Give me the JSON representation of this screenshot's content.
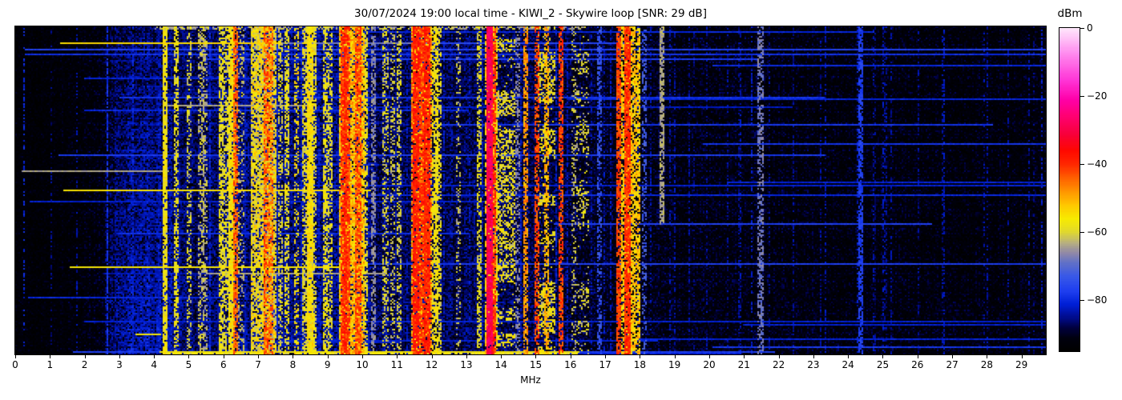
{
  "title": "30/07/2024 19:00 local time - KIWI_2 - Skywire loop [SNR: 29 dB]",
  "chart_data": {
    "type": "heatmap",
    "title": "30/07/2024 19:00 local time - KIWI_2 - Skywire loop [SNR: 29 dB]",
    "xlabel": "MHz",
    "x_ticks": [
      "0",
      "1",
      "2",
      "3",
      "4",
      "5",
      "6",
      "7",
      "8",
      "9",
      "10",
      "11",
      "12",
      "13",
      "14",
      "15",
      "16",
      "17",
      "18",
      "19",
      "20",
      "21",
      "22",
      "23",
      "24",
      "25",
      "26",
      "27",
      "28",
      "29"
    ],
    "xlim": [
      0,
      29.7
    ],
    "y_axis": "time (no tick labels shown)",
    "grid": false,
    "colorbar": {
      "label": "dBm",
      "range": [
        -95,
        0
      ],
      "ticks": [
        {
          "v": 0,
          "label": "0"
        },
        {
          "v": -20,
          "label": "−20"
        },
        {
          "v": -40,
          "label": "−40"
        },
        {
          "v": -60,
          "label": "−60"
        },
        {
          "v": -80,
          "label": "−80"
        }
      ]
    },
    "colormap": [
      [
        -95,
        "#000000"
      ],
      [
        -91,
        "#00000f"
      ],
      [
        -88,
        "#000040"
      ],
      [
        -85,
        "#000c8c"
      ],
      [
        -81,
        "#0020d8"
      ],
      [
        -77,
        "#2040f0"
      ],
      [
        -73,
        "#3858e8"
      ],
      [
        -69,
        "#6070c8"
      ],
      [
        -66,
        "#9088a8"
      ],
      [
        -63,
        "#b8b080"
      ],
      [
        -60,
        "#e0d830"
      ],
      [
        -56,
        "#f8ec00"
      ],
      [
        -52,
        "#ffc800"
      ],
      [
        -48,
        "#ff9600"
      ],
      [
        -44,
        "#ff6000"
      ],
      [
        -40,
        "#ff2800"
      ],
      [
        -36,
        "#ff0800"
      ],
      [
        -31,
        "#f8003c"
      ],
      [
        -26,
        "#ff0070"
      ],
      [
        -21,
        "#ff00a8"
      ],
      [
        -15,
        "#ff38d8"
      ],
      [
        -7,
        "#ff90f0"
      ],
      [
        0,
        "#ffe8fc"
      ]
    ],
    "noise_profile": [
      [
        0,
        -94,
        0.45
      ],
      [
        1.2,
        -93,
        0.5
      ],
      [
        2.4,
        -91,
        0.55
      ],
      [
        3.0,
        -86,
        0.8
      ],
      [
        3.6,
        -84.5,
        0.85
      ],
      [
        4.4,
        -85,
        0.85
      ],
      [
        5.2,
        -86,
        0.8
      ],
      [
        6.2,
        -85,
        0.85
      ],
      [
        7.5,
        -84.5,
        0.85
      ],
      [
        9.0,
        -85,
        0.85
      ],
      [
        10.5,
        -86,
        0.8
      ],
      [
        12.0,
        -86.5,
        0.78
      ],
      [
        14.0,
        -86.5,
        0.78
      ],
      [
        15.5,
        -87,
        0.75
      ],
      [
        16.5,
        -88.5,
        0.72
      ],
      [
        18.0,
        -89.5,
        0.68
      ],
      [
        19.5,
        -90.5,
        0.62
      ],
      [
        21.0,
        -90.5,
        0.62
      ],
      [
        22.5,
        -91,
        0.6
      ],
      [
        25.0,
        -91,
        0.6
      ],
      [
        27.0,
        -91.5,
        0.58
      ],
      [
        29.7,
        -91.5,
        0.58
      ]
    ],
    "bands": [
      {
        "f0": 4.25,
        "f1": 4.31,
        "lv": -57,
        "d": 0.85,
        "sp": 8
      },
      {
        "f0": 4.58,
        "f1": 4.64,
        "lv": -58,
        "d": 0.6,
        "sp": 8
      },
      {
        "f0": 4.95,
        "f1": 5.01,
        "lv": -60,
        "d": 0.4,
        "sp": 8
      },
      {
        "f0": 5.3,
        "f1": 5.36,
        "lv": -62,
        "d": 0.45,
        "sp": 8
      },
      {
        "f0": 5.42,
        "f1": 5.47,
        "lv": -63,
        "d": 0.4,
        "sp": 8
      },
      {
        "f0": 5.88,
        "f1": 5.94,
        "lv": -58,
        "d": 0.7,
        "sp": 8
      },
      {
        "f0": 6.04,
        "f1": 6.1,
        "lv": -59,
        "d": 0.5,
        "sp": 8
      },
      {
        "f0": 6.18,
        "f1": 6.25,
        "lv": -56,
        "d": 0.85,
        "sp": 8
      },
      {
        "f0": 6.29,
        "f1": 6.35,
        "lv": -44,
        "d": 0.7,
        "sp": 10
      },
      {
        "f0": 6.46,
        "f1": 6.52,
        "lv": -62,
        "d": 0.3,
        "sp": 8
      },
      {
        "f0": 6.8,
        "f1": 7.45,
        "lv": -57,
        "d": 0.78,
        "sp": 14
      },
      {
        "f0": 7.18,
        "f1": 7.24,
        "lv": -43,
        "d": 0.65,
        "sp": 10
      },
      {
        "f0": 7.3,
        "f1": 7.36,
        "lv": -45,
        "d": 0.6,
        "sp": 10
      },
      {
        "f0": 7.58,
        "f1": 7.64,
        "lv": -60,
        "d": 0.45,
        "sp": 8
      },
      {
        "f0": 7.78,
        "f1": 7.84,
        "lv": -58,
        "d": 0.6,
        "sp": 8
      },
      {
        "f0": 8.05,
        "f1": 8.11,
        "lv": -55,
        "d": 0.35,
        "sp": 8
      },
      {
        "f0": 8.3,
        "f1": 8.6,
        "lv": -59,
        "d": 0.55,
        "sp": 10
      },
      {
        "f0": 8.44,
        "f1": 8.5,
        "lv": -55,
        "d": 0.85,
        "sp": 8
      },
      {
        "f0": 8.88,
        "f1": 8.94,
        "lv": -58,
        "d": 0.6,
        "sp": 8
      },
      {
        "f0": 9.02,
        "f1": 9.08,
        "lv": -59,
        "d": 0.5,
        "sp": 8
      },
      {
        "f0": 9.35,
        "f1": 10.0,
        "lv": -52,
        "d": 0.8,
        "sp": 14
      },
      {
        "f0": 9.4,
        "f1": 9.47,
        "lv": -40,
        "d": 0.8,
        "sp": 10
      },
      {
        "f0": 9.5,
        "f1": 9.57,
        "lv": -41,
        "d": 0.75,
        "sp": 10
      },
      {
        "f0": 9.83,
        "f1": 9.89,
        "lv": -42,
        "d": 0.7,
        "sp": 10
      },
      {
        "f0": 10.03,
        "f1": 10.09,
        "lv": -58,
        "d": 0.6,
        "sp": 8
      },
      {
        "f0": 10.28,
        "f1": 10.33,
        "lv": -66,
        "d": 0.5,
        "sp": 6
      },
      {
        "f0": 10.62,
        "f1": 10.68,
        "lv": -60,
        "d": 0.4,
        "sp": 8
      },
      {
        "f0": 10.82,
        "f1": 10.88,
        "lv": -61,
        "d": 0.35,
        "sp": 8
      },
      {
        "f0": 11.02,
        "f1": 11.08,
        "lv": -60,
        "d": 0.4,
        "sp": 8
      },
      {
        "f0": 11.45,
        "f1": 11.95,
        "lv": -48,
        "d": 0.75,
        "sp": 16
      },
      {
        "f0": 11.5,
        "f1": 11.56,
        "lv": -38,
        "d": 0.85,
        "sp": 8
      },
      {
        "f0": 11.68,
        "f1": 11.74,
        "lv": -40,
        "d": 0.7,
        "sp": 10
      },
      {
        "f0": 11.82,
        "f1": 11.88,
        "lv": -39,
        "d": 0.8,
        "sp": 8
      },
      {
        "f0": 12.05,
        "f1": 12.11,
        "lv": -57,
        "d": 0.6,
        "sp": 8
      },
      {
        "f0": 12.14,
        "f1": 12.2,
        "lv": -58,
        "d": 0.5,
        "sp": 8
      },
      {
        "f0": 12.72,
        "f1": 12.78,
        "lv": -62,
        "d": 0.3,
        "sp": 8
      },
      {
        "f0": 13.32,
        "f1": 13.38,
        "lv": -59,
        "d": 0.5,
        "sp": 8
      },
      {
        "f0": 13.55,
        "f1": 13.85,
        "lv": -54,
        "d": 0.65,
        "sp": 12
      },
      {
        "f0": 13.62,
        "f1": 13.68,
        "lv": -29,
        "d": 0.95,
        "sp": 8
      },
      {
        "f0": 13.73,
        "f1": 13.79,
        "lv": -40,
        "d": 0.7,
        "sp": 10
      },
      {
        "f0": 13.9,
        "f1": 14.35,
        "lv": -58,
        "d": 0.5,
        "sp": 10,
        "blocky": true
      },
      {
        "f0": 14.42,
        "f1": 14.47,
        "lv": -66,
        "d": 0.4,
        "sp": 6
      },
      {
        "f0": 14.67,
        "f1": 14.73,
        "lv": -48,
        "d": 0.65,
        "sp": 10
      },
      {
        "f0": 14.97,
        "f1": 15.03,
        "lv": -42,
        "d": 0.55,
        "sp": 10
      },
      {
        "f0": 15.1,
        "f1": 15.48,
        "lv": -58,
        "d": 0.5,
        "sp": 10,
        "blocky": true
      },
      {
        "f0": 15.27,
        "f1": 15.33,
        "lv": -50,
        "d": 0.6,
        "sp": 10
      },
      {
        "f0": 15.67,
        "f1": 15.73,
        "lv": -42,
        "d": 0.65,
        "sp": 10
      },
      {
        "f0": 16.03,
        "f1": 16.09,
        "lv": -62,
        "d": 0.3,
        "sp": 8
      },
      {
        "f0": 16.2,
        "f1": 16.45,
        "lv": -60,
        "d": 0.3,
        "sp": 10,
        "blocky": true
      },
      {
        "f0": 16.78,
        "f1": 16.84,
        "lv": -74,
        "d": 0.5,
        "sp": 6
      },
      {
        "f0": 17.35,
        "f1": 17.41,
        "lv": -42,
        "d": 0.8,
        "sp": 8
      },
      {
        "f0": 17.5,
        "f1": 17.95,
        "lv": -53,
        "d": 0.7,
        "sp": 12
      },
      {
        "f0": 17.59,
        "f1": 17.65,
        "lv": -40,
        "d": 0.85,
        "sp": 8
      },
      {
        "f0": 18.08,
        "f1": 18.14,
        "lv": -72,
        "d": 0.4,
        "sp": 6
      },
      {
        "f0": 18.6,
        "f1": 18.65,
        "lv": -64,
        "d": 0.7,
        "sp": 6,
        "t1": 0.6
      },
      {
        "f0": 21.42,
        "f1": 21.48,
        "lv": -68,
        "d": 0.55,
        "sp": 6
      },
      {
        "f0": 24.33,
        "f1": 24.38,
        "lv": -77,
        "d": 0.7,
        "sp": 5
      }
    ],
    "verticals": [
      {
        "f": 1.02,
        "lv": -85,
        "d": 0.3
      },
      {
        "f": 1.75,
        "lv": -84,
        "d": 0.35
      },
      {
        "f": 2.62,
        "lv": -79,
        "d": 0.8
      },
      {
        "f": 3.35,
        "lv": -81,
        "d": 0.6
      },
      {
        "f": 5.6,
        "lv": -80,
        "d": 0.6
      },
      {
        "f": 6.62,
        "lv": -82,
        "d": 0.5
      },
      {
        "f": 7.52,
        "lv": -80,
        "d": 0.5
      },
      {
        "f": 8.2,
        "lv": -82,
        "d": 0.5
      },
      {
        "f": 8.75,
        "lv": -82,
        "d": 0.5
      },
      {
        "f": 10.15,
        "lv": -82,
        "d": 0.5
      },
      {
        "f": 10.95,
        "lv": -83,
        "d": 0.4
      },
      {
        "f": 11.25,
        "lv": -82,
        "d": 0.5
      },
      {
        "f": 12.35,
        "lv": -82,
        "d": 0.5
      },
      {
        "f": 12.55,
        "lv": -83,
        "d": 0.4
      },
      {
        "f": 13.05,
        "lv": -82,
        "d": 0.45
      },
      {
        "f": 13.45,
        "lv": -82,
        "d": 0.5
      },
      {
        "f": 14.55,
        "lv": -82,
        "d": 0.5
      },
      {
        "f": 15.55,
        "lv": -81,
        "d": 0.5
      },
      {
        "f": 15.9,
        "lv": -82,
        "d": 0.5
      },
      {
        "f": 16.6,
        "lv": -83,
        "d": 0.4
      },
      {
        "f": 16.95,
        "lv": -82,
        "d": 0.45
      },
      {
        "f": 17.15,
        "lv": -82,
        "d": 0.45
      },
      {
        "f": 18.3,
        "lv": -83,
        "d": 0.4
      },
      {
        "f": 18.85,
        "lv": -83,
        "d": 0.4
      },
      {
        "f": 19.4,
        "lv": -84,
        "d": 0.4
      },
      {
        "f": 19.9,
        "lv": -84,
        "d": 0.35
      },
      {
        "f": 20.5,
        "lv": -84,
        "d": 0.35
      },
      {
        "f": 20.9,
        "lv": -83,
        "d": 0.4
      },
      {
        "f": 21.7,
        "lv": -84,
        "d": 0.35
      },
      {
        "f": 22.4,
        "lv": -84,
        "d": 0.35
      },
      {
        "f": 23.2,
        "lv": -84,
        "d": 0.35
      },
      {
        "f": 25.1,
        "lv": -84,
        "d": 0.35
      },
      {
        "f": 26.0,
        "lv": -84,
        "d": 0.3
      },
      {
        "f": 26.7,
        "lv": -84,
        "d": 0.3
      },
      {
        "f": 27.9,
        "lv": -84,
        "d": 0.3
      },
      {
        "f": 28.6,
        "lv": -84,
        "d": 0.3
      },
      {
        "f": 29.2,
        "lv": -84,
        "d": 0.3
      }
    ],
    "streaks": [
      {
        "t": 0.05,
        "f0": 1.3,
        "f1": 7.6,
        "lv": -54
      },
      {
        "t": 0.05,
        "f0": 7.6,
        "f1": 12.0,
        "lv": -68
      },
      {
        "t": 0.05,
        "f0": 12.0,
        "f1": 18.0,
        "lv": -76
      },
      {
        "t": 0.068,
        "f0": 0.3,
        "f1": 29.7,
        "lv": -77
      },
      {
        "t": 0.085,
        "f0": 0.3,
        "f1": 29.7,
        "lv": -79
      },
      {
        "t": 0.155,
        "f0": 2.0,
        "f1": 9.0,
        "lv": -81
      },
      {
        "t": 0.24,
        "f0": 4.4,
        "f1": 8.3,
        "lv": -64
      },
      {
        "t": 0.255,
        "f0": 2.0,
        "f1": 13.0,
        "lv": -80
      },
      {
        "t": 0.44,
        "f0": 0.2,
        "f1": 4.35,
        "lv": -64
      },
      {
        "t": 0.485,
        "f0": 8.0,
        "f1": 29.7,
        "lv": -81
      },
      {
        "t": 0.5,
        "f0": 1.4,
        "f1": 10.2,
        "lv": -55
      },
      {
        "t": 0.515,
        "f0": 10.2,
        "f1": 29.7,
        "lv": -80
      },
      {
        "t": 0.63,
        "f0": 3.0,
        "f1": 13.0,
        "lv": -79
      },
      {
        "t": 0.735,
        "f0": 1.6,
        "f1": 9.9,
        "lv": -56
      },
      {
        "t": 0.755,
        "f0": 5.5,
        "f1": 10.6,
        "lv": -64
      },
      {
        "t": 0.83,
        "f0": 0.4,
        "f1": 6.0,
        "lv": -80
      },
      {
        "t": 0.903,
        "f0": 2.0,
        "f1": 29.7,
        "lv": -81
      },
      {
        "t": 0.94,
        "f0": 3.5,
        "f1": 4.15,
        "lv": -57
      },
      {
        "t": 0.995,
        "f0": 4.2,
        "f1": 16.2,
        "lv": -57
      }
    ],
    "random_h_lines": {
      "count": 24,
      "lv_min": -83,
      "lv_max": -77
    },
    "random_v_lines": {
      "count": 30,
      "lv_min": -86,
      "lv_max": -80,
      "d": 0.4
    },
    "haze": {
      "f0": 2.6,
      "f1": 4.8,
      "slope": 3
    },
    "render": {
      "cols": 643,
      "rows": 205,
      "cell": 2,
      "seed": 20240730
    }
  }
}
